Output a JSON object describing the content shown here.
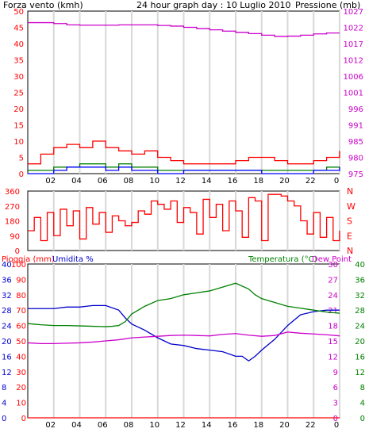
{
  "header": {
    "left": "Forza vento (kmh)",
    "center": "24 hour graph day : 10 Luglio 2010",
    "right": "Pressione (mb)"
  },
  "colors": {
    "wind": "#ff0000",
    "wind_gust_bars": "#ff0000",
    "wind_avg": "#008000",
    "wind_low": "#0000ff",
    "pressure": "#cc00cc",
    "rain": "#ff0000",
    "humidity": "#0000cc",
    "temperature": "#008000",
    "dewpoint": "#cc00cc",
    "grid": "#d8d8d8"
  },
  "chart_data": [
    {
      "type": "line",
      "name": "wind-pressure",
      "x_ticks": [
        "02",
        "04",
        "06",
        "08",
        "10",
        "12",
        "14",
        "16",
        "18",
        "20",
        "22",
        "0"
      ],
      "left_axis": {
        "label": "Forza vento (kmh)",
        "ticks": [
          0,
          5,
          10,
          15,
          20,
          25,
          30,
          35,
          40,
          45,
          50
        ],
        "range": [
          0,
          50
        ]
      },
      "right_axis": {
        "label": "Pressione (mb)",
        "ticks": [
          975,
          980,
          985,
          991,
          996,
          1001,
          1006,
          1012,
          1017,
          1022,
          1027
        ],
        "range": [
          975,
          1027
        ]
      },
      "series": [
        {
          "name": "Pressione (mb)",
          "x": [
            0,
            2,
            3,
            4,
            5,
            6,
            7,
            8,
            9,
            10,
            11,
            12,
            13,
            14,
            15,
            16,
            17,
            18,
            19,
            20,
            21,
            22,
            23,
            24
          ],
          "values": [
            1023.3,
            1023.0,
            1022.6,
            1022.5,
            1022.5,
            1022.5,
            1022.6,
            1022.6,
            1022.6,
            1022.4,
            1022.2,
            1021.8,
            1021.4,
            1021.0,
            1020.6,
            1020.2,
            1019.8,
            1019.3,
            1018.9,
            1019.0,
            1019.3,
            1019.7,
            1020.0,
            1020.0
          ]
        },
        {
          "name": "gusts",
          "x": [
            0,
            1,
            2,
            3,
            4,
            5,
            6,
            7,
            8,
            9,
            10,
            11,
            12,
            13,
            14,
            15,
            16,
            17,
            18,
            19,
            20,
            21,
            22,
            23,
            24
          ],
          "values": [
            3,
            6,
            8,
            9,
            8,
            10,
            8,
            7,
            6,
            7,
            5,
            4,
            3,
            3,
            3,
            3,
            4,
            5,
            5,
            4,
            3,
            3,
            4,
            5,
            7
          ]
        },
        {
          "name": "avg",
          "x": [
            0,
            2,
            3,
            4,
            5,
            6,
            7,
            8,
            9,
            10,
            11,
            12,
            14,
            16,
            18,
            20,
            22,
            23,
            24
          ],
          "values": [
            1,
            2,
            2,
            3,
            3,
            2,
            3,
            2,
            2,
            1,
            1,
            1,
            1,
            1,
            1,
            1,
            1,
            2,
            2
          ]
        },
        {
          "name": "low",
          "x": [
            0,
            2,
            3,
            4,
            5,
            6,
            7,
            8,
            9,
            10,
            12,
            14,
            16,
            18,
            20,
            22,
            23,
            24
          ],
          "values": [
            0,
            1,
            2,
            2,
            2,
            1,
            2,
            1,
            1,
            0,
            1,
            1,
            1,
            0,
            0,
            1,
            1,
            2
          ]
        }
      ]
    },
    {
      "type": "line",
      "name": "wind-direction",
      "x_ticks": [
        "02",
        "04",
        "06",
        "08",
        "10",
        "12",
        "14",
        "16",
        "18",
        "20",
        "22",
        "0"
      ],
      "left_axis": {
        "ticks": [
          0,
          90,
          180,
          270,
          360
        ],
        "range": [
          0,
          360
        ]
      },
      "right_axis": {
        "ticks": [
          "N",
          "W",
          "S",
          "E",
          "N"
        ]
      },
      "series": [
        {
          "name": "direction",
          "x": [
            0,
            0.5,
            1,
            1.5,
            2,
            2.5,
            3,
            3.5,
            4,
            4.5,
            5,
            5.5,
            6,
            6.5,
            7,
            7.5,
            8,
            8.5,
            9,
            9.5,
            10,
            10.5,
            11,
            11.5,
            12,
            12.5,
            13,
            13.5,
            14,
            14.5,
            15,
            15.5,
            16,
            16.5,
            17,
            17.5,
            18,
            18.5,
            19,
            19.5,
            20,
            20.5,
            21,
            21.5,
            22,
            22.5,
            23,
            23.5,
            24
          ],
          "values": [
            120,
            200,
            60,
            230,
            90,
            250,
            150,
            240,
            70,
            260,
            160,
            230,
            110,
            210,
            180,
            150,
            170,
            240,
            220,
            300,
            280,
            250,
            300,
            170,
            260,
            230,
            100,
            310,
            200,
            280,
            120,
            300,
            240,
            80,
            320,
            300,
            60,
            340,
            340,
            330,
            300,
            270,
            180,
            100,
            230,
            80,
            200,
            60,
            120
          ]
        }
      ]
    },
    {
      "type": "line",
      "name": "rain-humidity-temperature",
      "x_ticks": [
        "02",
        "04",
        "06",
        "08",
        "10",
        "12",
        "14",
        "16",
        "18",
        "20",
        "22",
        "0"
      ],
      "left_axis_rain": {
        "label": "Pioggia (mm)",
        "ticks": [
          0,
          10,
          20,
          30,
          40,
          50,
          60,
          70,
          80,
          90,
          100
        ],
        "range": [
          0,
          100
        ]
      },
      "left_axis_humidity": {
        "label": "Umidita %",
        "ticks": [
          0,
          4,
          8,
          12,
          16,
          20,
          24,
          28,
          32,
          36,
          40
        ],
        "range": [
          0,
          40
        ]
      },
      "right_axis_temp": {
        "label": "Temperatura (°C)",
        "ticks": [
          0,
          4,
          8,
          12,
          16,
          20,
          24,
          28,
          32,
          36,
          40
        ],
        "range": [
          0,
          40
        ]
      },
      "right_label_extra": "Dew Point",
      "inner_ticks": [
        0,
        3,
        6,
        9,
        12,
        15,
        18,
        21,
        24,
        27,
        30
      ],
      "series": [
        {
          "name": "Umidita %",
          "x": [
            0,
            1,
            2,
            3,
            4,
            5,
            6,
            7,
            7.5,
            8,
            9,
            10,
            11,
            12,
            13,
            14,
            15,
            16,
            16.5,
            17,
            17.5,
            18,
            19,
            20,
            21,
            22,
            23,
            24
          ],
          "values": [
            71,
            71,
            71,
            72,
            72,
            73,
            73,
            70,
            65,
            61,
            57,
            52,
            48,
            47,
            45,
            44,
            43,
            40,
            40,
            37,
            40,
            44,
            51,
            60,
            67,
            69,
            70,
            70
          ]
        },
        {
          "name": "Temperatura (°C)",
          "x": [
            0,
            1,
            2,
            3,
            4,
            5,
            6,
            6.5,
            7,
            7.5,
            8,
            9,
            10,
            11,
            12,
            13,
            14,
            15,
            16,
            17,
            17.5,
            18,
            19,
            20,
            21,
            22,
            23,
            24
          ],
          "values": [
            24.5,
            24.2,
            24,
            24,
            23.9,
            23.8,
            23.7,
            23.8,
            24,
            25,
            27,
            29,
            30.5,
            31,
            32,
            32.5,
            33,
            34,
            35,
            33.5,
            32,
            31,
            30,
            29,
            28.5,
            28,
            27.5,
            27.2
          ]
        },
        {
          "name": "Dew Point",
          "x": [
            0,
            1,
            2,
            3,
            4,
            5,
            6,
            7,
            8,
            9,
            10,
            11,
            12,
            13,
            14,
            15,
            16,
            17,
            18,
            19,
            20,
            21,
            22,
            23,
            24
          ],
          "values": [
            19.5,
            19.3,
            19.3,
            19.4,
            19.5,
            19.7,
            20,
            20.3,
            20.8,
            21,
            21.2,
            21.4,
            21.5,
            21.4,
            21.3,
            21.7,
            21.9,
            21.5,
            21.2,
            21.4,
            22.3,
            22,
            21.8,
            21.6,
            21.3
          ]
        },
        {
          "name": "Pioggia (mm)",
          "x": [
            0,
            24
          ],
          "values": [
            0,
            0
          ]
        }
      ]
    }
  ]
}
